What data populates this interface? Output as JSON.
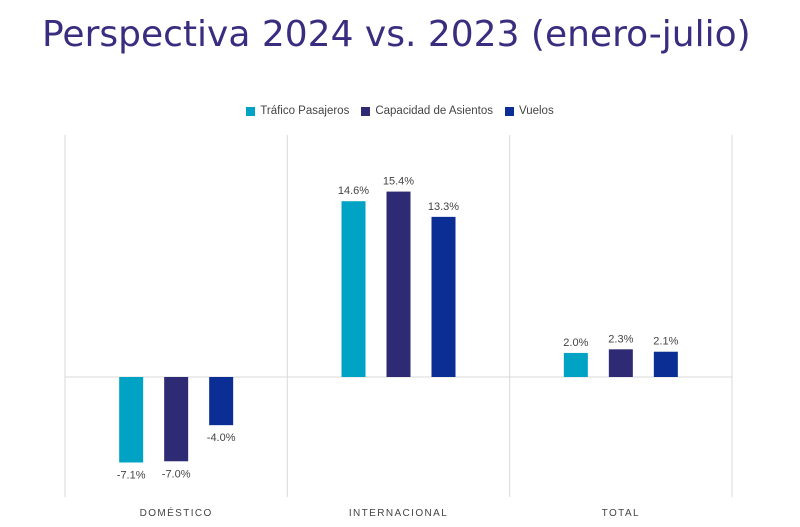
{
  "title": "Perspectiva 2024 vs. 2023 (enero-julio)",
  "colors": {
    "trafico": "#00a3c4",
    "capacidad": "#2e2a73",
    "vuelos": "#0a2e94",
    "title": "#3a2d80",
    "grid": "#d9d9d9"
  },
  "chart_data": {
    "type": "bar",
    "title": "Perspectiva 2024 vs. 2023 (enero-julio)",
    "xlabel": "",
    "ylabel": "",
    "ylim": [
      -9,
      17
    ],
    "grid": false,
    "legend_position": "top-center",
    "categories": [
      "DOMÉSTICO",
      "INTERNACIONAL",
      "TOTAL"
    ],
    "series": [
      {
        "name": "Tráfico Pasajeros",
        "color": "#00a3c4",
        "values": [
          -7.1,
          14.6,
          2.0
        ],
        "labels": [
          "-7.1%",
          "14.6%",
          "2.0%"
        ]
      },
      {
        "name": "Capacidad de Asientos",
        "color": "#2e2a73",
        "values": [
          -7.0,
          15.4,
          2.3
        ],
        "labels": [
          "-7.0%",
          "15.4%",
          "2.3%"
        ]
      },
      {
        "name": "Vuelos",
        "color": "#0a2e94",
        "values": [
          -4.0,
          13.3,
          2.1
        ],
        "labels": [
          "-4.0%",
          "13.3%",
          "2.1%"
        ]
      }
    ]
  }
}
